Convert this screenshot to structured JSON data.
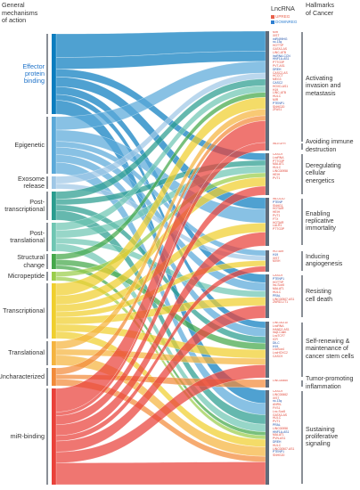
{
  "headers": {
    "left": [
      "General",
      "mechanisms",
      "of action"
    ],
    "middle": "LncRNA",
    "right": [
      "Hallmarks",
      "of Cancer"
    ]
  },
  "legend": [
    {
      "label": "UPREG",
      "color": "#e8604a"
    },
    {
      "label": "DOWNREG",
      "color": "#2e7fd1"
    }
  ],
  "mechanisms": [
    {
      "label": "Effector protein binding",
      "lines": [
        "Effector",
        "protein",
        "binding"
      ],
      "color": "#0b7dbf",
      "label_color": "blue",
      "y1": 38,
      "y2": 128
    },
    {
      "label": "Epigenetic",
      "lines": [
        "Epigenetic"
      ],
      "color": "#5aa9d9",
      "label_color": "default",
      "y1": 131,
      "y2": 195
    },
    {
      "label": "Exosome release",
      "lines": [
        "Exosome",
        "release"
      ],
      "color": "#9fc7e6",
      "label_color": "default",
      "y1": 198,
      "y2": 212
    },
    {
      "label": "Post-transcriptional",
      "lines": [
        "Post-",
        "transcriptional"
      ],
      "color": "#2a9d8f",
      "label_color": "default",
      "y1": 215,
      "y2": 247
    },
    {
      "label": "Post-translational",
      "lines": [
        "Post-",
        "translational"
      ],
      "color": "#6fc6b3",
      "label_color": "default",
      "y1": 250,
      "y2": 282
    },
    {
      "label": "Structural change",
      "lines": [
        "Structural",
        "change"
      ],
      "color": "#44a84a",
      "label_color": "default",
      "y1": 285,
      "y2": 302
    },
    {
      "label": "Micropeptide",
      "lines": [
        "Micropeptide"
      ],
      "color": "#9acd4b",
      "label_color": "default",
      "y1": 305,
      "y2": 315
    },
    {
      "label": "Transcriptional",
      "lines": [
        "Transcriptional"
      ],
      "color": "#f0cf2e",
      "label_color": "default",
      "y1": 318,
      "y2": 380
    },
    {
      "label": "Translational",
      "lines": [
        "Translational"
      ],
      "color": "#f5b43f",
      "label_color": "default",
      "y1": 383,
      "y2": 410
    },
    {
      "label": "Uncharacterized",
      "lines": [
        "Uncharacterized"
      ],
      "color": "#f28a3a",
      "label_color": "default",
      "y1": 413,
      "y2": 433
    },
    {
      "label": "miR-binding",
      "lines": [
        "miR-binding"
      ],
      "color": "#e9413a",
      "label_color": "default",
      "y1": 436,
      "y2": 544
    }
  ],
  "hallmarks": [
    {
      "label": "Activating invasion and metastasis",
      "lines": [
        "Activating",
        "invasion and",
        "metastasis"
      ],
      "y1": 35,
      "y2": 160
    },
    {
      "label": "Avoiding immune destruction",
      "lines": [
        "Avoiding immune",
        "destruction"
      ],
      "y1": 160,
      "y2": 169
    },
    {
      "label": "Deregulating cellular energetics",
      "lines": [
        "Deregulating",
        "cellular",
        "energetics"
      ],
      "y1": 172,
      "y2": 219
    },
    {
      "label": "Enabling replicative immortality",
      "lines": [
        "Enabling",
        "replicative",
        "immortality"
      ],
      "y1": 222,
      "y2": 276
    },
    {
      "label": "Inducing angiogenesis",
      "lines": [
        "Inducing",
        "angiogenesis"
      ],
      "y1": 281,
      "y2": 305
    },
    {
      "label": "Resisting cell death",
      "lines": [
        "Resisting",
        "cell death"
      ],
      "y1": 308,
      "y2": 357
    },
    {
      "label": "Self-renewing & maintenance of cancer stem cells",
      "lines": [
        "Self-renewing &",
        "maintenance of",
        "cancer stem cells"
      ],
      "y1": 361,
      "y2": 424
    },
    {
      "label": "Tumor-promoting inflammation",
      "lines": [
        "Tumor-promoting",
        "inflammation"
      ],
      "y1": 426,
      "y2": 435
    },
    {
      "label": "Sustaining proliferative signaling",
      "lines": [
        "Sustaining",
        "proliferative",
        "signaling"
      ],
      "y1": 438,
      "y2": 544
    }
  ],
  "lncrna_groups": [
    {
      "hallmark": "Activating invasion and metastasis",
      "genes": [
        {
          "n": "MIR",
          "u": 1
        },
        {
          "n": "XIST",
          "u": 1
        },
        {
          "n": "miR499HG",
          "u": 0
        },
        {
          "n": "nc-13q",
          "u": 0
        },
        {
          "n": "HOTTIP",
          "u": 1
        },
        {
          "n": "GATA3-AS",
          "u": 1
        },
        {
          "n": "LINC-ATB",
          "u": 1
        },
        {
          "n": "lncRNA-CCN",
          "u": 0
        },
        {
          "n": "HNF1A-AS1",
          "u": 0
        },
        {
          "n": "PTTG3P",
          "u": 1
        },
        {
          "n": "PVT-AS1",
          "u": 1
        },
        {
          "n": "DREH",
          "u": 0
        },
        {
          "n": "CASC2-AS",
          "u": 1
        },
        {
          "n": "HCCCT",
          "u": 1
        },
        {
          "n": "MEG3",
          "u": 1
        },
        {
          "n": "CASC2",
          "u": 0
        },
        {
          "n": "HOXD-AS1",
          "u": 1
        },
        {
          "n": "H19",
          "u": 1
        },
        {
          "n": "LINC-ATB",
          "u": 1
        },
        {
          "n": "HULC",
          "u": 1
        },
        {
          "n": "MIR",
          "u": 1
        },
        {
          "n": "PTENP1",
          "u": 0
        },
        {
          "n": "SNHG20",
          "u": 1
        },
        {
          "n": "ZFAS1",
          "u": 1
        }
      ]
    },
    {
      "hallmark": "Avoiding immune destruction",
      "genes": [
        {
          "n": "lnc-EGFR",
          "u": 1
        }
      ]
    },
    {
      "hallmark": "Deregulating cellular energetics",
      "genes": [
        {
          "n": "CASC9",
          "u": 1
        },
        {
          "n": "LncRNA",
          "u": 1
        },
        {
          "n": "PTTG3P",
          "u": 1
        },
        {
          "n": "MALAT1",
          "u": 1
        },
        {
          "n": "HULC",
          "u": 1
        },
        {
          "n": "LINC00958",
          "u": 1
        },
        {
          "n": "HEIH",
          "u": 1
        },
        {
          "n": "PVT1",
          "u": 1
        }
      ]
    },
    {
      "hallmark": "Enabling replicative immortality",
      "genes": [
        {
          "n": "lnc-UCID",
          "u": 1
        },
        {
          "n": "PTENP",
          "u": 0
        },
        {
          "n": "SNHG1",
          "u": 1
        },
        {
          "n": "HOTAIR",
          "u": 1
        },
        {
          "n": "HEIH",
          "u": 1
        },
        {
          "n": "PVT1",
          "u": 1
        },
        {
          "n": "FTX",
          "u": 1
        },
        {
          "n": "HOTAIR",
          "u": 1
        },
        {
          "n": "LALR1",
          "u": 1
        },
        {
          "n": "PTTG3P",
          "u": 1
        }
      ]
    },
    {
      "hallmark": "Inducing angiogenesis",
      "genes": [
        {
          "n": "HOTAIR",
          "u": 1
        },
        {
          "n": "H19",
          "u": 0
        },
        {
          "n": "XIST",
          "u": 1
        },
        {
          "n": "MVIH",
          "u": 1
        }
      ]
    },
    {
      "hallmark": "Resisting cell death",
      "genes": [
        {
          "n": "CASC9",
          "u": 1
        },
        {
          "n": "PTENP1",
          "u": 0
        },
        {
          "n": "HOTTIP",
          "u": 1
        },
        {
          "n": "lnc-Sox5",
          "u": 1
        },
        {
          "n": "MALAT1",
          "u": 1
        },
        {
          "n": "HULC",
          "u": 1
        },
        {
          "n": "PRAL",
          "u": 0
        },
        {
          "n": "LINC00507-AS1",
          "u": 1
        },
        {
          "n": "ZNRD1-IT1",
          "u": 1
        }
      ]
    },
    {
      "hallmark": "Self-renewing & maintenance of cancer stem cells",
      "genes": [
        {
          "n": "LINC00210",
          "u": 1
        },
        {
          "n": "LncRNA",
          "u": 1
        },
        {
          "n": "HAND2-AS1",
          "u": 1
        },
        {
          "n": "lncβ-Catm",
          "u": 1
        },
        {
          "n": "LncTCF7",
          "u": 1
        },
        {
          "n": "ICR",
          "u": 1
        },
        {
          "n": "DILC",
          "u": 0
        },
        {
          "n": "H19",
          "u": 0
        },
        {
          "n": "LncSox4",
          "u": 1
        },
        {
          "n": "LncHOXC2",
          "u": 1
        },
        {
          "n": "CASC9",
          "u": 1
        }
      ]
    },
    {
      "hallmark": "Tumor-promoting inflammation",
      "genes": [
        {
          "n": "LINC00665",
          "u": 1
        }
      ]
    },
    {
      "hallmark": "Sustaining proliferative signaling",
      "genes": [
        {
          "n": "CASC9",
          "u": 1
        },
        {
          "n": "LINC00662",
          "u": 1
        },
        {
          "n": "XIST",
          "u": 1
        },
        {
          "n": "nc-13q",
          "u": 0
        },
        {
          "n": "ANRIL",
          "u": 1
        },
        {
          "n": "FVS1",
          "u": 1
        },
        {
          "n": "Lnc-Sox5",
          "u": 1
        },
        {
          "n": "GATA3-AS",
          "u": 1
        },
        {
          "n": "HULC",
          "u": 1
        },
        {
          "n": "PVT1",
          "u": 1
        },
        {
          "n": "PRAL",
          "u": 0
        },
        {
          "n": "LINC00958",
          "u": 1
        },
        {
          "n": "HNF1A-AS1",
          "u": 0
        },
        {
          "n": "MALAT1",
          "u": 1
        },
        {
          "n": "PVN-AS1",
          "u": 1
        },
        {
          "n": "DREH",
          "u": 0
        },
        {
          "n": "HULC",
          "u": 1
        },
        {
          "n": "LINC00507-AS1",
          "u": 1
        },
        {
          "n": "PTENP1",
          "u": 0
        },
        {
          "n": "SNHG20",
          "u": 1
        }
      ]
    }
  ],
  "links": [
    {
      "m": 0,
      "h": 0,
      "w": 24
    },
    {
      "m": 0,
      "h": 0,
      "w": 12
    },
    {
      "m": 0,
      "h": 3,
      "w": 10
    },
    {
      "m": 0,
      "h": 5,
      "w": 8
    },
    {
      "m": 0,
      "h": 6,
      "w": 6
    },
    {
      "m": 0,
      "h": 8,
      "w": 14
    },
    {
      "m": 0,
      "h": 2,
      "w": 8
    },
    {
      "m": 1,
      "h": 0,
      "w": 14
    },
    {
      "m": 1,
      "h": 3,
      "w": 12
    },
    {
      "m": 1,
      "h": 5,
      "w": 8
    },
    {
      "m": 1,
      "h": 6,
      "w": 8
    },
    {
      "m": 1,
      "h": 8,
      "w": 12
    },
    {
      "m": 1,
      "h": 4,
      "w": 6
    },
    {
      "m": 2,
      "h": 0,
      "w": 7
    },
    {
      "m": 2,
      "h": 4,
      "w": 5
    },
    {
      "m": 3,
      "h": 0,
      "w": 8
    },
    {
      "m": 3,
      "h": 8,
      "w": 10
    },
    {
      "m": 3,
      "h": 2,
      "w": 6
    },
    {
      "m": 3,
      "h": 6,
      "w": 6
    },
    {
      "m": 4,
      "h": 0,
      "w": 8
    },
    {
      "m": 4,
      "h": 2,
      "w": 8
    },
    {
      "m": 4,
      "h": 5,
      "w": 6
    },
    {
      "m": 4,
      "h": 8,
      "w": 8
    },
    {
      "m": 5,
      "h": 0,
      "w": 6
    },
    {
      "m": 5,
      "h": 6,
      "w": 6
    },
    {
      "m": 5,
      "h": 8,
      "w": 4
    },
    {
      "m": 6,
      "h": 2,
      "w": 5
    },
    {
      "m": 6,
      "h": 8,
      "w": 4
    },
    {
      "m": 7,
      "h": 0,
      "w": 14
    },
    {
      "m": 7,
      "h": 2,
      "w": 10
    },
    {
      "m": 7,
      "h": 3,
      "w": 8
    },
    {
      "m": 7,
      "h": 4,
      "w": 6
    },
    {
      "m": 7,
      "h": 5,
      "w": 8
    },
    {
      "m": 7,
      "h": 6,
      "w": 8
    },
    {
      "m": 7,
      "h": 8,
      "w": 8
    },
    {
      "m": 8,
      "h": 0,
      "w": 8
    },
    {
      "m": 8,
      "h": 6,
      "w": 6
    },
    {
      "m": 8,
      "h": 8,
      "w": 10
    },
    {
      "m": 9,
      "h": 0,
      "w": 6
    },
    {
      "m": 9,
      "h": 7,
      "w": 4
    },
    {
      "m": 9,
      "h": 8,
      "w": 6
    },
    {
      "m": 10,
      "h": 0,
      "w": 26
    },
    {
      "m": 10,
      "h": 1,
      "w": 4
    },
    {
      "m": 10,
      "h": 2,
      "w": 10
    },
    {
      "m": 10,
      "h": 3,
      "w": 12
    },
    {
      "m": 10,
      "h": 4,
      "w": 6
    },
    {
      "m": 10,
      "h": 5,
      "w": 12
    },
    {
      "m": 10,
      "h": 6,
      "w": 12
    },
    {
      "m": 10,
      "h": 8,
      "w": 24
    }
  ]
}
